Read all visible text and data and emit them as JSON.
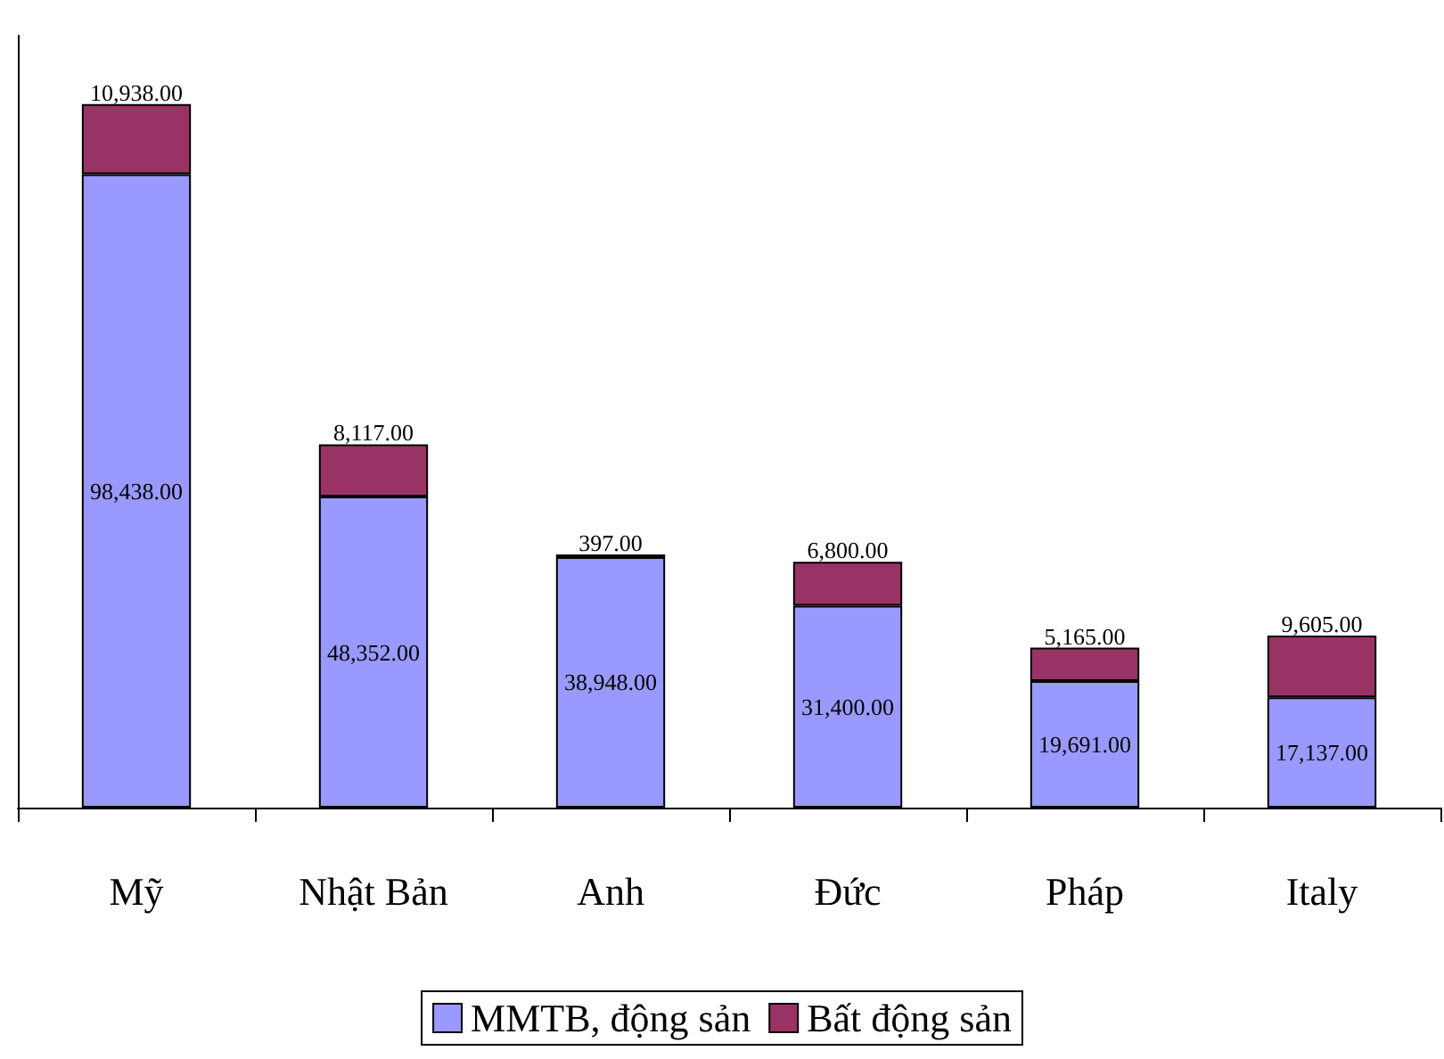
{
  "chart_data": {
    "type": "bar",
    "stacked": true,
    "categories": [
      "Mỹ",
      "Nhật Bản",
      "Anh",
      "Đức",
      "Pháp",
      "Italy"
    ],
    "series": [
      {
        "name": "MMTB, động sản",
        "color": "#9999ff",
        "values": [
          98438,
          48352,
          38948,
          31400,
          19691,
          17137
        ],
        "value_labels": [
          "98,438.00",
          "48,352.00",
          "38,948.00",
          "31,400.00",
          "19,691.00",
          "17,137.00"
        ]
      },
      {
        "name": "Bất động sản",
        "color": "#993366",
        "values": [
          10938,
          8117,
          397,
          6800,
          5165,
          9605
        ],
        "value_labels": [
          "10,938.00",
          "8,117.00",
          "397.00",
          "6,800.00",
          "5,165.00",
          "9,605.00"
        ]
      }
    ],
    "legend": "bottom",
    "grid": false,
    "tick_labels": "x"
  }
}
